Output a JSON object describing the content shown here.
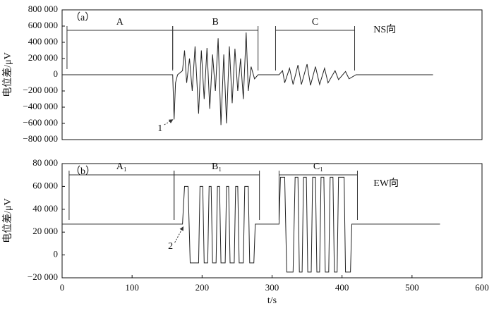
{
  "chart_data": [
    {
      "type": "line",
      "ylabel": "电位差/μV",
      "panel_label": "（a）",
      "region_labels": [
        "A",
        "B",
        "C"
      ],
      "direction_label": "NS向",
      "marker_label": "1",
      "xlim": [
        0,
        600
      ],
      "ylim": [
        -800000,
        800000
      ],
      "yticks": [
        {
          "value": -800000,
          "label": "−800 000"
        },
        {
          "value": -600000,
          "label": "−600 000"
        },
        {
          "value": -400000,
          "label": "−400 000"
        },
        {
          "value": -200000,
          "label": "−200 000"
        },
        0,
        {
          "value": 200000,
          "label": "200 000"
        },
        {
          "value": 400000,
          "label": "400 000"
        },
        {
          "value": 600000,
          "label": "600 000"
        },
        {
          "value": 800000,
          "label": "800 000"
        }
      ],
      "color": "#222222",
      "x": [
        0,
        158,
        160,
        162,
        165,
        172,
        175,
        178,
        182,
        186,
        190,
        195,
        199,
        203,
        207,
        211,
        215,
        219,
        223,
        227,
        231,
        235,
        239,
        243,
        247,
        251,
        255,
        259,
        263,
        266,
        270,
        275,
        280,
        310,
        315,
        318,
        325,
        330,
        337,
        342,
        350,
        355,
        362,
        368,
        375,
        380,
        390,
        395,
        405,
        410,
        420,
        530
      ],
      "values": [
        0,
        0,
        -550000,
        -100000,
        0,
        50000,
        300000,
        -100000,
        200000,
        -200000,
        350000,
        -480000,
        300000,
        -300000,
        330000,
        -420000,
        250000,
        -200000,
        450000,
        -620000,
        250000,
        -600000,
        350000,
        -350000,
        320000,
        -200000,
        200000,
        -300000,
        520000,
        -200000,
        100000,
        -50000,
        0,
        0,
        50000,
        -100000,
        80000,
        -120000,
        120000,
        -120000,
        130000,
        -130000,
        100000,
        -120000,
        80000,
        -100000,
        50000,
        -60000,
        40000,
        -50000,
        0,
        0
      ]
    },
    {
      "type": "line",
      "xlabel": "t/s",
      "ylabel": "电位差/μV",
      "panel_label": "（b）",
      "region_labels": [
        "A₁",
        "B₁",
        "C₁"
      ],
      "direction_label": "EW向",
      "marker_label": "2",
      "xlim": [
        0,
        600
      ],
      "xticks": [
        0,
        100,
        200,
        300,
        400,
        500,
        600
      ],
      "ylim": [
        -20000,
        80000
      ],
      "yticks": [
        {
          "value": -20000,
          "label": "−20 000"
        },
        0,
        {
          "value": 20000,
          "label": "20 000"
        },
        {
          "value": 40000,
          "label": "40 000"
        },
        {
          "value": 60000,
          "label": "60 000"
        },
        {
          "value": 80000,
          "label": "80 000"
        }
      ],
      "color": "#222222",
      "x": [
        0,
        172,
        175,
        180,
        183,
        195,
        197,
        201,
        203,
        208,
        210,
        213,
        215,
        220,
        222,
        225,
        227,
        233,
        235,
        238,
        240,
        246,
        248,
        251,
        253,
        259,
        261,
        266,
        268,
        274,
        276,
        310,
        312,
        318,
        321,
        330,
        333,
        337,
        339,
        343,
        345,
        349,
        351,
        356,
        358,
        362,
        364,
        368,
        370,
        374,
        376,
        381,
        383,
        387,
        389,
        393,
        395,
        403,
        405,
        412,
        414,
        540
      ],
      "values": [
        27000,
        27000,
        60000,
        60000,
        -7000,
        -7000,
        60000,
        60000,
        -7000,
        -7000,
        60000,
        60000,
        -7000,
        -7000,
        60000,
        60000,
        -7000,
        -7000,
        60000,
        60000,
        -7000,
        -7000,
        60000,
        60000,
        -7000,
        -7000,
        60000,
        60000,
        -7000,
        -7000,
        27000,
        27000,
        68000,
        68000,
        -15000,
        -15000,
        68000,
        68000,
        -15000,
        -15000,
        68000,
        68000,
        -15000,
        -15000,
        68000,
        68000,
        -15000,
        -15000,
        68000,
        68000,
        -15000,
        -15000,
        68000,
        68000,
        -15000,
        -15000,
        68000,
        68000,
        -15000,
        -15000,
        27000,
        27000
      ]
    }
  ]
}
